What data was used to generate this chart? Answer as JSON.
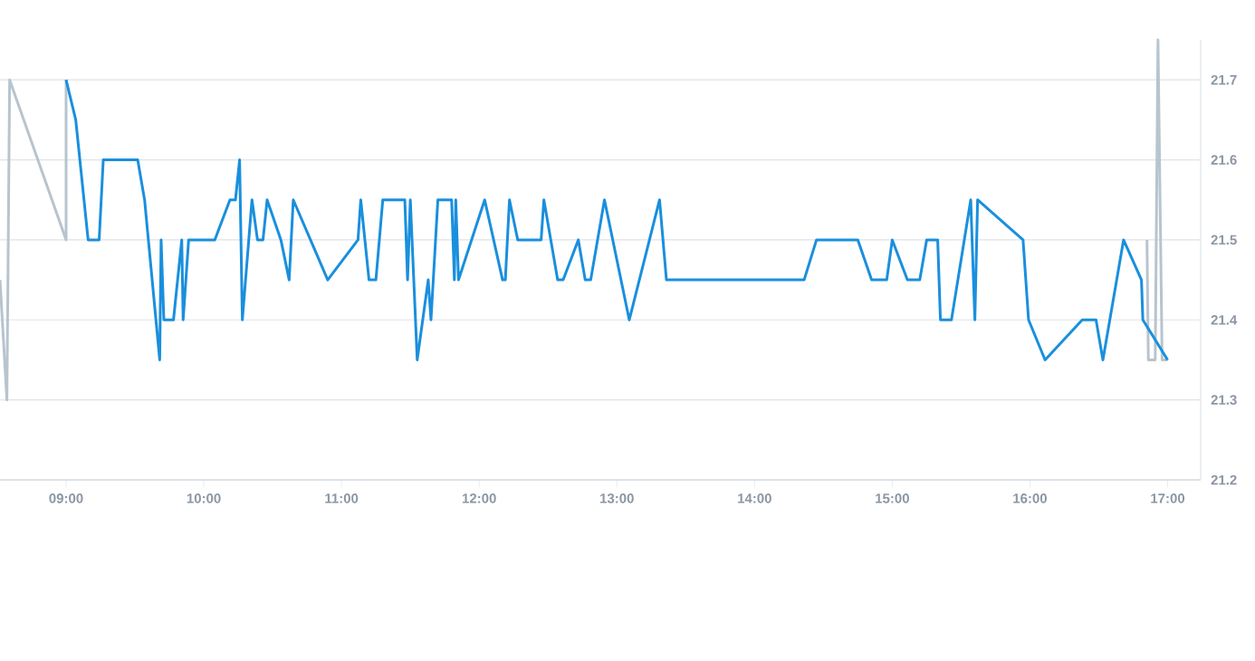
{
  "chart_data": {
    "type": "line",
    "xlim": [
      8.52,
      17.24
    ],
    "xticks": [
      {
        "value": 9,
        "label": "09:00"
      },
      {
        "value": 10,
        "label": "10:00"
      },
      {
        "value": 11,
        "label": "11:00"
      },
      {
        "value": 12,
        "label": "12:00"
      },
      {
        "value": 13,
        "label": "13:00"
      },
      {
        "value": 14,
        "label": "14:00"
      },
      {
        "value": 15,
        "label": "15:00"
      },
      {
        "value": 16,
        "label": "16:00"
      },
      {
        "value": 17,
        "label": "17:00"
      }
    ],
    "ylim": [
      21.2,
      21.75
    ],
    "yticks": [
      21.2,
      21.3,
      21.4,
      21.5,
      21.6,
      21.7
    ],
    "grid": "y",
    "series": [
      {
        "color": "#b8c4ce",
        "x": [
          8.52,
          8.57,
          8.59,
          9.0,
          9.0,
          16.82,
          16.85,
          16.86,
          16.91,
          16.93,
          16.96,
          17.0
        ],
        "values": [
          21.45,
          21.3,
          21.7,
          21.5,
          21.7,
          null,
          21.5,
          21.35,
          21.35,
          21.75,
          21.35,
          21.35
        ]
      },
      {
        "color": "#1a8fdd",
        "x": [
          9.0,
          9.07,
          9.16,
          9.24,
          9.27,
          9.52,
          9.57,
          9.68,
          9.69,
          9.71,
          9.78,
          9.84,
          9.85,
          9.89,
          10.08,
          10.19,
          10.23,
          10.26,
          10.28,
          10.35,
          10.39,
          10.43,
          10.46,
          10.56,
          10.62,
          10.65,
          10.9,
          11.12,
          11.14,
          11.2,
          11.25,
          11.3,
          11.46,
          11.48,
          11.5,
          11.55,
          11.63,
          11.65,
          11.7,
          11.8,
          11.82,
          11.83,
          11.85,
          12.04,
          12.17,
          12.19,
          12.22,
          12.28,
          12.45,
          12.47,
          12.57,
          12.61,
          12.72,
          12.77,
          12.81,
          12.91,
          13.09,
          13.31,
          13.36,
          14.36,
          14.45,
          14.75,
          14.85,
          14.96,
          15.0,
          15.11,
          15.2,
          15.25,
          15.33,
          15.35,
          15.43,
          15.57,
          15.6,
          15.62,
          15.95,
          15.99,
          16.11,
          16.38,
          16.48,
          16.53,
          16.68,
          16.81,
          16.82,
          17.0
        ],
        "values": [
          21.7,
          21.65,
          21.5,
          21.5,
          21.6,
          21.6,
          21.55,
          21.35,
          21.5,
          21.4,
          21.4,
          21.5,
          21.4,
          21.5,
          21.5,
          21.55,
          21.55,
          21.6,
          21.4,
          21.55,
          21.5,
          21.5,
          21.55,
          21.5,
          21.45,
          21.55,
          21.45,
          21.5,
          21.55,
          21.45,
          21.45,
          21.55,
          21.55,
          21.45,
          21.55,
          21.35,
          21.45,
          21.4,
          21.55,
          21.55,
          21.45,
          21.55,
          21.45,
          21.55,
          21.45,
          21.45,
          21.55,
          21.5,
          21.5,
          21.55,
          21.45,
          21.45,
          21.5,
          21.45,
          21.45,
          21.55,
          21.4,
          21.55,
          21.45,
          21.45,
          21.5,
          21.5,
          21.45,
          21.45,
          21.5,
          21.45,
          21.45,
          21.5,
          21.5,
          21.4,
          21.4,
          21.55,
          21.4,
          21.55,
          21.5,
          21.4,
          21.35,
          21.4,
          21.4,
          21.35,
          21.5,
          21.45,
          21.4,
          21.35
        ]
      }
    ]
  }
}
